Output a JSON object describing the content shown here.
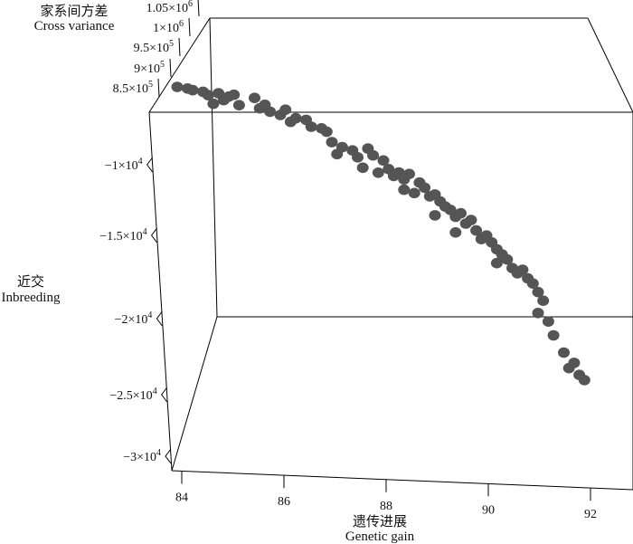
{
  "chart_data": {
    "type": "scatter",
    "projection": "3d",
    "x_axis": {
      "label_cn": "遗传进展",
      "label_en": "Genetic gain",
      "ticks": [
        84,
        86,
        88,
        90,
        92
      ],
      "tick_labels": [
        "84",
        "86",
        "88",
        "90",
        "92"
      ]
    },
    "y_axis": {
      "label_cn": "近交",
      "label_en": "Inbreeding",
      "ticks": [
        -10000,
        -15000,
        -20000,
        -25000,
        -30000
      ],
      "tick_labels": [
        "−1×10",
        "−1.5×10",
        "−2×10",
        "−2.5×10",
        "−3×10"
      ],
      "tick_exponent": "4"
    },
    "z_axis": {
      "label_cn": "家系间方差",
      "label_en": "Cross variance",
      "ticks": [
        850000,
        900000,
        950000,
        1000000,
        1050000
      ],
      "tick_labels": [
        "8.5×10",
        "9×10",
        "9.5×10",
        "1×10",
        "1.05×10"
      ],
      "tick_exponents": [
        "5",
        "5",
        "5",
        "6",
        "6"
      ]
    },
    "point_color": "#555555",
    "points": [
      [
        84.0,
        -6800
      ],
      [
        84.2,
        -6900
      ],
      [
        84.3,
        -7000
      ],
      [
        84.5,
        -7100
      ],
      [
        84.6,
        -7300
      ],
      [
        84.8,
        -7200
      ],
      [
        84.9,
        -7600
      ],
      [
        85.0,
        -7400
      ],
      [
        84.7,
        -7800
      ],
      [
        85.2,
        -7900
      ],
      [
        85.1,
        -7300
      ],
      [
        85.5,
        -7500
      ],
      [
        85.6,
        -8100
      ],
      [
        85.8,
        -8300
      ],
      [
        85.7,
        -7900
      ],
      [
        86.0,
        -8500
      ],
      [
        86.1,
        -8200
      ],
      [
        86.3,
        -8700
      ],
      [
        86.2,
        -8900
      ],
      [
        86.5,
        -8800
      ],
      [
        86.6,
        -9200
      ],
      [
        86.8,
        -9300
      ],
      [
        86.9,
        -9500
      ],
      [
        87.0,
        -10100
      ],
      [
        87.2,
        -10400
      ],
      [
        87.1,
        -10800
      ],
      [
        87.4,
        -10600
      ],
      [
        87.5,
        -11000
      ],
      [
        87.7,
        -10500
      ],
      [
        87.8,
        -10900
      ],
      [
        87.6,
        -11600
      ],
      [
        87.9,
        -11900
      ],
      [
        88.0,
        -11200
      ],
      [
        88.1,
        -11700
      ],
      [
        88.2,
        -12100
      ],
      [
        88.3,
        -11900
      ],
      [
        88.4,
        -12300
      ],
      [
        88.5,
        -12000
      ],
      [
        88.4,
        -12900
      ],
      [
        88.6,
        -13100
      ],
      [
        88.7,
        -12500
      ],
      [
        88.8,
        -12800
      ],
      [
        88.9,
        -13300
      ],
      [
        89.0,
        -13200
      ],
      [
        89.1,
        -13600
      ],
      [
        89.2,
        -13900
      ],
      [
        89.0,
        -14400
      ],
      [
        89.3,
        -14100
      ],
      [
        89.4,
        -14500
      ],
      [
        89.5,
        -14300
      ],
      [
        89.6,
        -14900
      ],
      [
        89.7,
        -14700
      ],
      [
        89.4,
        -15400
      ],
      [
        89.8,
        -15300
      ],
      [
        89.9,
        -15800
      ],
      [
        90.0,
        -15600
      ],
      [
        90.1,
        -16000
      ],
      [
        90.2,
        -16400
      ],
      [
        90.3,
        -16700
      ],
      [
        90.2,
        -17200
      ],
      [
        90.4,
        -17000
      ],
      [
        90.5,
        -17500
      ],
      [
        90.6,
        -17800
      ],
      [
        90.7,
        -17600
      ],
      [
        90.8,
        -18100
      ],
      [
        90.9,
        -18400
      ],
      [
        91.0,
        -18900
      ],
      [
        91.1,
        -19400
      ],
      [
        91.0,
        -20100
      ],
      [
        91.2,
        -20600
      ],
      [
        91.3,
        -21400
      ],
      [
        91.5,
        -22400
      ],
      [
        91.6,
        -23300
      ],
      [
        91.7,
        -23000
      ],
      [
        91.8,
        -23700
      ],
      [
        91.9,
        -24000
      ]
    ]
  }
}
